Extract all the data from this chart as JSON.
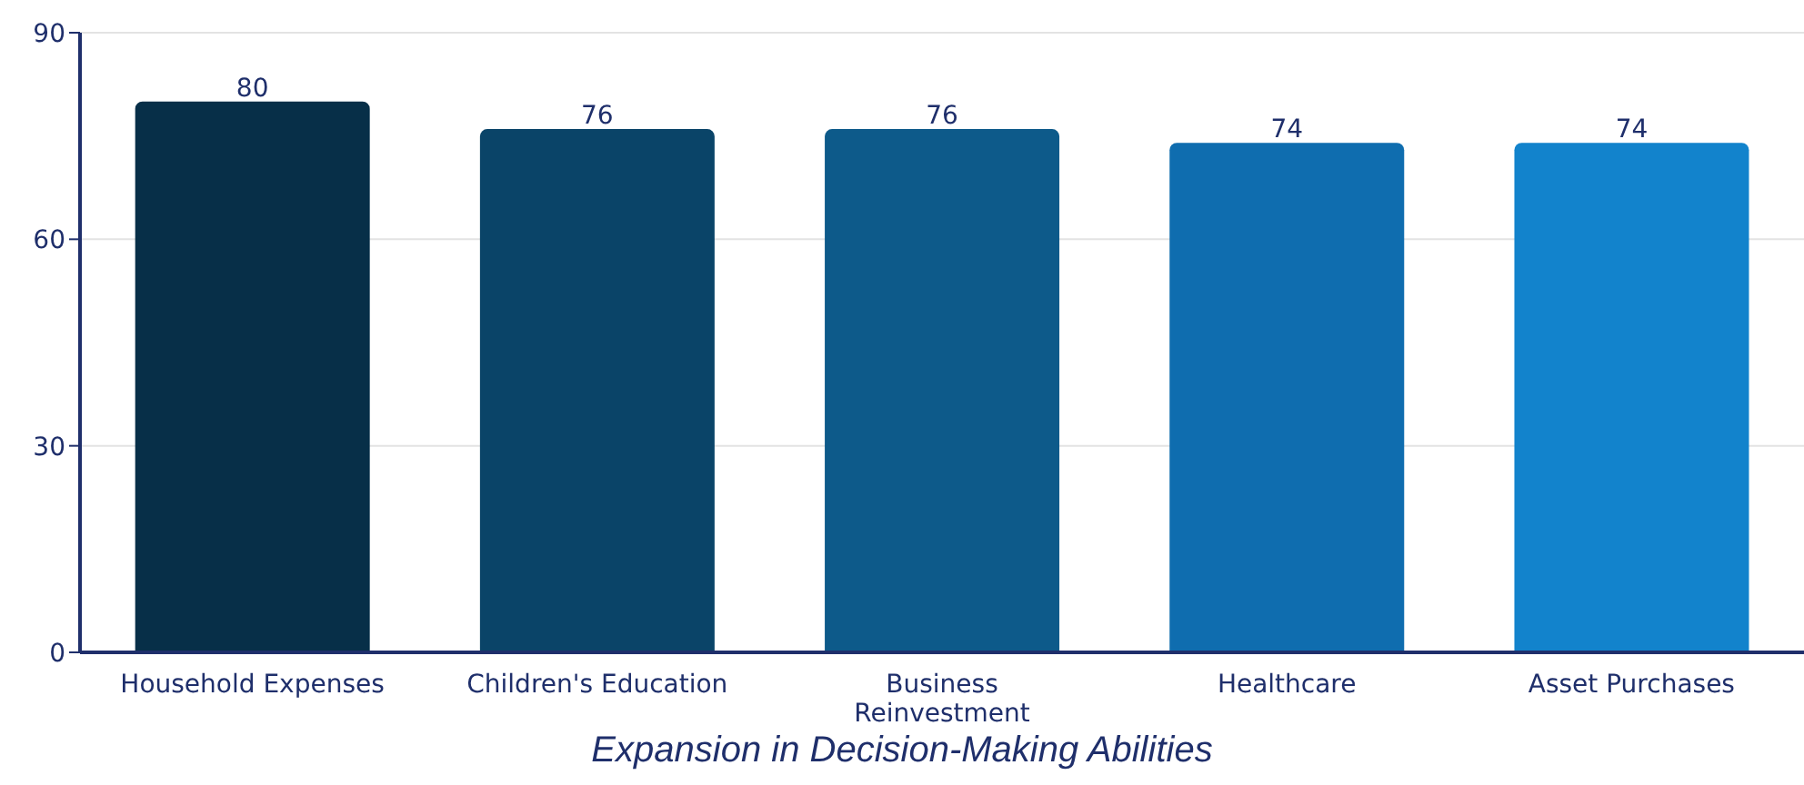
{
  "chart_data": {
    "type": "bar",
    "title": "Expansion in Decision-Making Abilities",
    "categories": [
      "Household Expenses",
      "Children's Education",
      "Business Reinvestment",
      "Healthcare",
      "Asset Purchases"
    ],
    "values": [
      80,
      76,
      76,
      74,
      74
    ],
    "colors": [
      "#072f48",
      "#0a4468",
      "#0d5a8a",
      "#0f6daf",
      "#1283cc"
    ],
    "ylim": [
      0,
      90
    ],
    "yticks": [
      0,
      30,
      60,
      90
    ],
    "grid": "y",
    "data_labels": true
  }
}
